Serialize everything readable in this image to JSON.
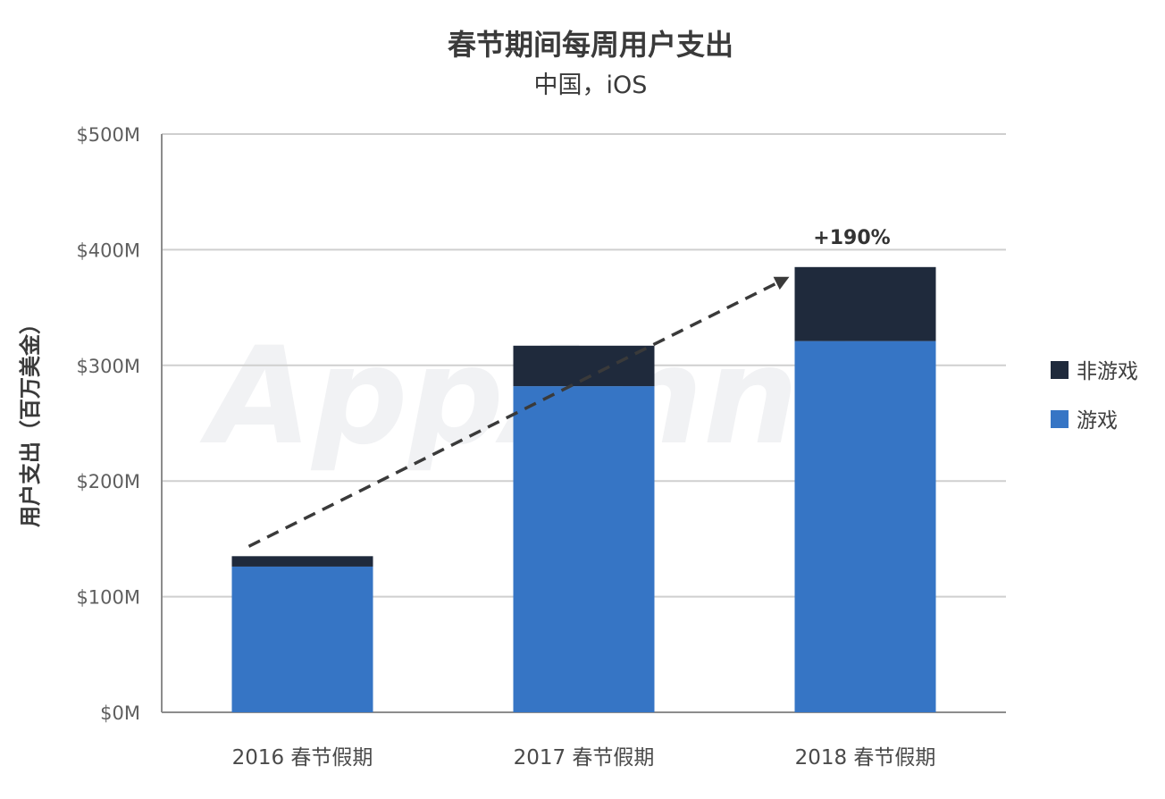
{
  "chart_data": {
    "type": "bar",
    "stacked": true,
    "title": "春节期间每周用户支出",
    "subtitle": "中国，iOS",
    "ylabel": "用户支出（百万美金）",
    "xlabel": "",
    "ylim": [
      0,
      500
    ],
    "y_ticks": [
      0,
      100,
      200,
      300,
      400,
      500
    ],
    "y_tick_labels": [
      "$0M",
      "$100M",
      "$200M",
      "$300M",
      "$400M",
      "$500M"
    ],
    "categories": [
      "2016 春节假期",
      "2017 春节假期",
      "2018 春节假期"
    ],
    "series": [
      {
        "name": "游戏",
        "values": [
          126,
          282,
          321
        ],
        "color": "#3675c5"
      },
      {
        "name": "非游戏",
        "values": [
          9,
          35,
          64
        ],
        "color": "#1f2a3c"
      }
    ],
    "legend_order": [
      "非游戏",
      "游戏"
    ],
    "legend_position": "right",
    "grid": true,
    "annotation": {
      "text": "+190%",
      "arrow_from_category": "2016 春节假期",
      "arrow_to_category": "2018 春节假期",
      "style": "dashed"
    },
    "watermark": "AppAnnie"
  }
}
